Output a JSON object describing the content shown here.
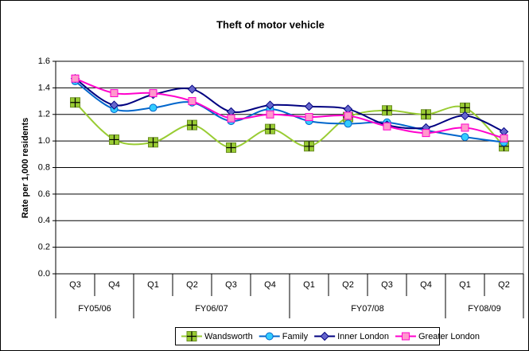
{
  "chart_data": {
    "type": "line",
    "title": "Theft of motor vehicle",
    "y_label": "Rate per 1,000 residents",
    "categories": [
      "Q3",
      "Q4",
      "Q1",
      "Q2",
      "Q3",
      "Q4",
      "Q1",
      "Q2",
      "Q3",
      "Q4",
      "Q1",
      "Q2"
    ],
    "x_groups": [
      {
        "label": "FY05/06",
        "span": 2
      },
      {
        "label": "FY06/07",
        "span": 4
      },
      {
        "label": "FY07/08",
        "span": 4
      },
      {
        "label": "FY08/09",
        "span": 2
      }
    ],
    "series": [
      {
        "name": "Wandsworth",
        "color": "#99cc33",
        "marker": "square-plus",
        "values": [
          1.29,
          1.01,
          0.99,
          1.12,
          0.95,
          1.09,
          0.96,
          1.18,
          1.23,
          1.2,
          1.25,
          0.96
        ]
      },
      {
        "name": "Family",
        "color": "#0066cc",
        "marker_color": "#33ccff",
        "marker": "circle",
        "values": [
          1.45,
          1.24,
          1.25,
          1.29,
          1.15,
          1.24,
          1.15,
          1.13,
          1.14,
          1.08,
          1.03,
          0.99
        ]
      },
      {
        "name": "Inner London",
        "color": "#000080",
        "marker_color": "#6666cc",
        "marker": "diamond",
        "values": [
          1.47,
          1.27,
          1.35,
          1.39,
          1.22,
          1.27,
          1.26,
          1.24,
          1.12,
          1.1,
          1.19,
          1.07
        ]
      },
      {
        "name": "Greater London",
        "color": "#ff00cc",
        "marker_color": "#ff99cc",
        "marker": "square",
        "values": [
          1.47,
          1.36,
          1.36,
          1.3,
          1.17,
          1.2,
          1.18,
          1.19,
          1.11,
          1.06,
          1.1,
          1.02
        ]
      }
    ],
    "ylim": [
      0,
      1.6
    ],
    "yticks": [
      {
        "value": 0,
        "label": "0.0"
      },
      0.2,
      0.4,
      0.6,
      0.8,
      {
        "value": 1,
        "label": "1.0"
      },
      1.2,
      1.4,
      1.6
    ],
    "grid": true,
    "legend": "bottom",
    "smooth": true
  }
}
